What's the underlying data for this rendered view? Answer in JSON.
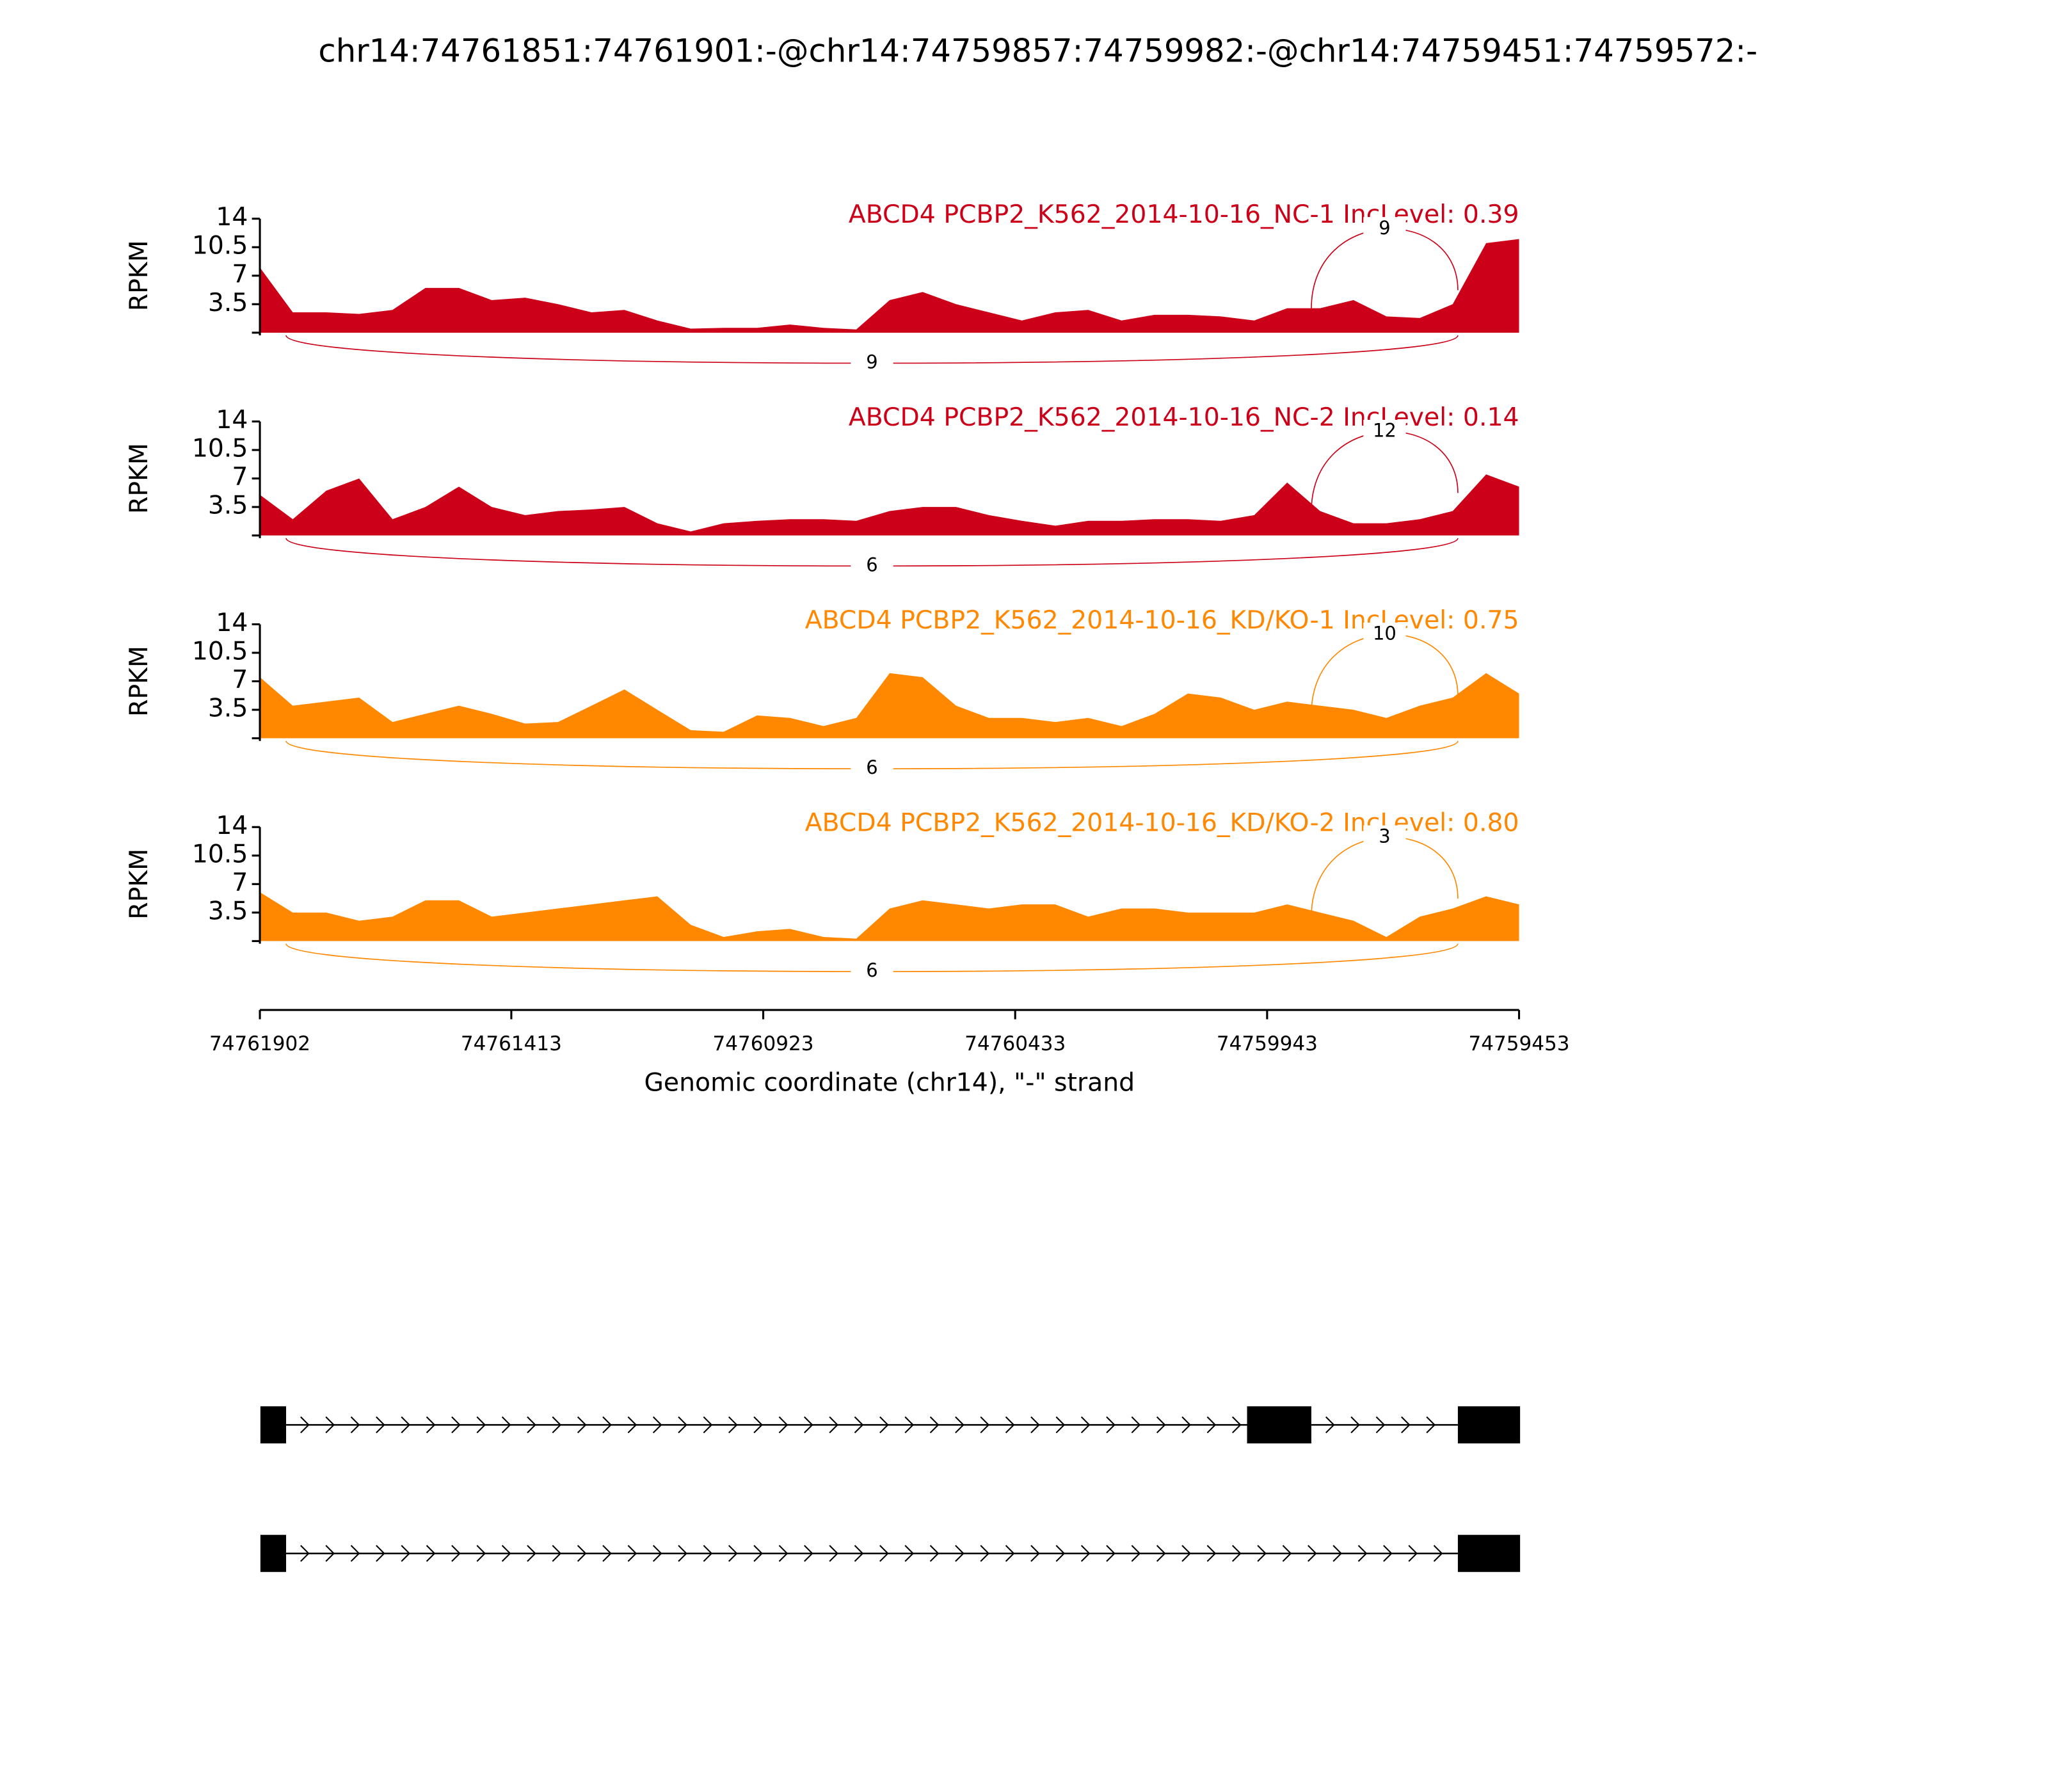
{
  "chart_data": {
    "type": "sashimi",
    "title": "chr14:74761851:74761901:-@chr14:74759857:74759982:-@chr14:74759451:74759572:-",
    "ylabel": "RPKM",
    "xlabel": "Genomic coordinate (chr14), \"-\" strand",
    "xlim": [
      74761902,
      74759453
    ],
    "xticks": [
      74761902,
      74761413,
      74760923,
      74760433,
      74759943,
      74759453
    ],
    "ylim": [
      0,
      14
    ],
    "yticks": [
      3.5,
      7,
      10.5,
      14
    ],
    "x": [
      74761902,
      74761838,
      74761773,
      74761709,
      74761644,
      74761580,
      74761515,
      74761451,
      74761386,
      74761322,
      74761257,
      74761193,
      74761129,
      74761064,
      74761000,
      74760935,
      74760871,
      74760806,
      74760742,
      74760677,
      74760613,
      74760548,
      74760484,
      74760420,
      74760355,
      74760291,
      74760226,
      74760162,
      74760097,
      74760033,
      74759968,
      74759904,
      74759840,
      74759775,
      74759711,
      74759646,
      74759582,
      74759517,
      74759453
    ],
    "series": [
      {
        "name": "ABCD4 PCBP2_K562_2014-10-16_NC-1 IncLevel: 0.39",
        "color": "#cc0018",
        "values": [
          8,
          2.5,
          2.5,
          2.3,
          2.8,
          5.5,
          5.5,
          4,
          4.3,
          3.5,
          2.5,
          2.8,
          1.5,
          0.5,
          0.6,
          0.6,
          1,
          0.6,
          0.4,
          4,
          5,
          3.5,
          2.5,
          1.5,
          2.5,
          2.8,
          1.5,
          2.2,
          2.2,
          2,
          1.5,
          3,
          3,
          4,
          2,
          1.8,
          3.5,
          11,
          11.5
        ],
        "junctions": [
          {
            "start": 74759857,
            "end": 74759572,
            "count": 9,
            "side": "above"
          },
          {
            "start": 74761851,
            "end": 74759572,
            "count": 9,
            "side": "below"
          }
        ]
      },
      {
        "name": "ABCD4 PCBP2_K562_2014-10-16_NC-2 IncLevel: 0.14",
        "color": "#cc0018",
        "values": [
          5,
          2,
          5.5,
          7,
          2,
          3.5,
          6,
          3.5,
          2.5,
          3,
          3.2,
          3.5,
          1.5,
          0.5,
          1.5,
          1.8,
          2,
          2,
          1.8,
          3,
          3.5,
          3.5,
          2.5,
          1.8,
          1.2,
          1.8,
          1.8,
          2,
          2,
          1.8,
          2.5,
          6.5,
          3,
          1.5,
          1.5,
          2,
          3,
          7.5,
          6
        ],
        "junctions": [
          {
            "start": 74759857,
            "end": 74759572,
            "count": 12,
            "side": "above"
          },
          {
            "start": 74761851,
            "end": 74759572,
            "count": 6,
            "side": "below"
          }
        ]
      },
      {
        "name": "ABCD4 PCBP2_K562_2014-10-16_KD/KO-1 IncLevel: 0.75",
        "color": "#ff8800",
        "values": [
          7.5,
          4,
          4.5,
          5,
          2,
          3,
          4,
          3,
          1.8,
          2,
          4,
          6,
          3.5,
          1,
          0.8,
          2.8,
          2.5,
          1.5,
          2.5,
          8,
          7.5,
          4,
          2.5,
          2.5,
          2,
          2.5,
          1.5,
          3,
          5.5,
          5,
          3.5,
          4.5,
          4,
          3.5,
          2.5,
          4,
          5,
          8,
          5.5
        ],
        "junctions": [
          {
            "start": 74759857,
            "end": 74759572,
            "count": 10,
            "side": "above"
          },
          {
            "start": 74761851,
            "end": 74759572,
            "count": 6,
            "side": "below"
          }
        ]
      },
      {
        "name": "ABCD4 PCBP2_K562_2014-10-16_KD/KO-2 IncLevel: 0.80",
        "color": "#ff8800",
        "values": [
          6,
          3.5,
          3.5,
          2.5,
          3,
          5,
          5,
          3,
          3.5,
          4,
          4.5,
          5,
          5.5,
          2,
          0.5,
          1.2,
          1.5,
          0.5,
          0.3,
          4,
          5,
          4.5,
          4,
          4.5,
          4.5,
          3,
          4,
          4,
          3.5,
          3.5,
          3.5,
          4.5,
          3.5,
          2.5,
          0.5,
          3,
          4,
          5.5,
          4.5
        ],
        "junctions": [
          {
            "start": 74759857,
            "end": 74759572,
            "count": 3,
            "side": "above"
          },
          {
            "start": 74761851,
            "end": 74759572,
            "count": 6,
            "side": "below"
          }
        ]
      }
    ],
    "transcripts": [
      {
        "exons": [
          [
            74761851,
            74761901
          ],
          [
            74759857,
            74759982
          ],
          [
            74759451,
            74759572
          ]
        ]
      },
      {
        "exons": [
          [
            74761851,
            74761901
          ],
          [
            74759451,
            74759572
          ]
        ]
      }
    ]
  }
}
